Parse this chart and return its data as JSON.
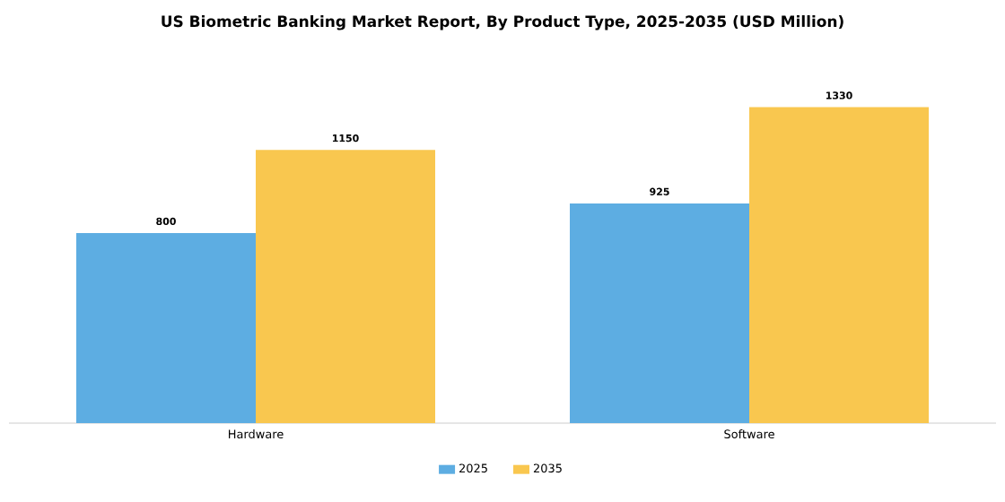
{
  "chart_data": {
    "type": "bar",
    "title": "US Biometric Banking Market Report, By Product Type, 2025-2035 (USD Million)",
    "categories": [
      "Hardware",
      "Software"
    ],
    "series": [
      {
        "name": "2025",
        "color": "#5DADE2",
        "values": [
          800,
          925
        ]
      },
      {
        "name": "2035",
        "color": "#F9C74F",
        "values": [
          1150,
          1330
        ]
      }
    ],
    "data_labels": true,
    "legend": "bottom",
    "tick_labels": "x"
  }
}
